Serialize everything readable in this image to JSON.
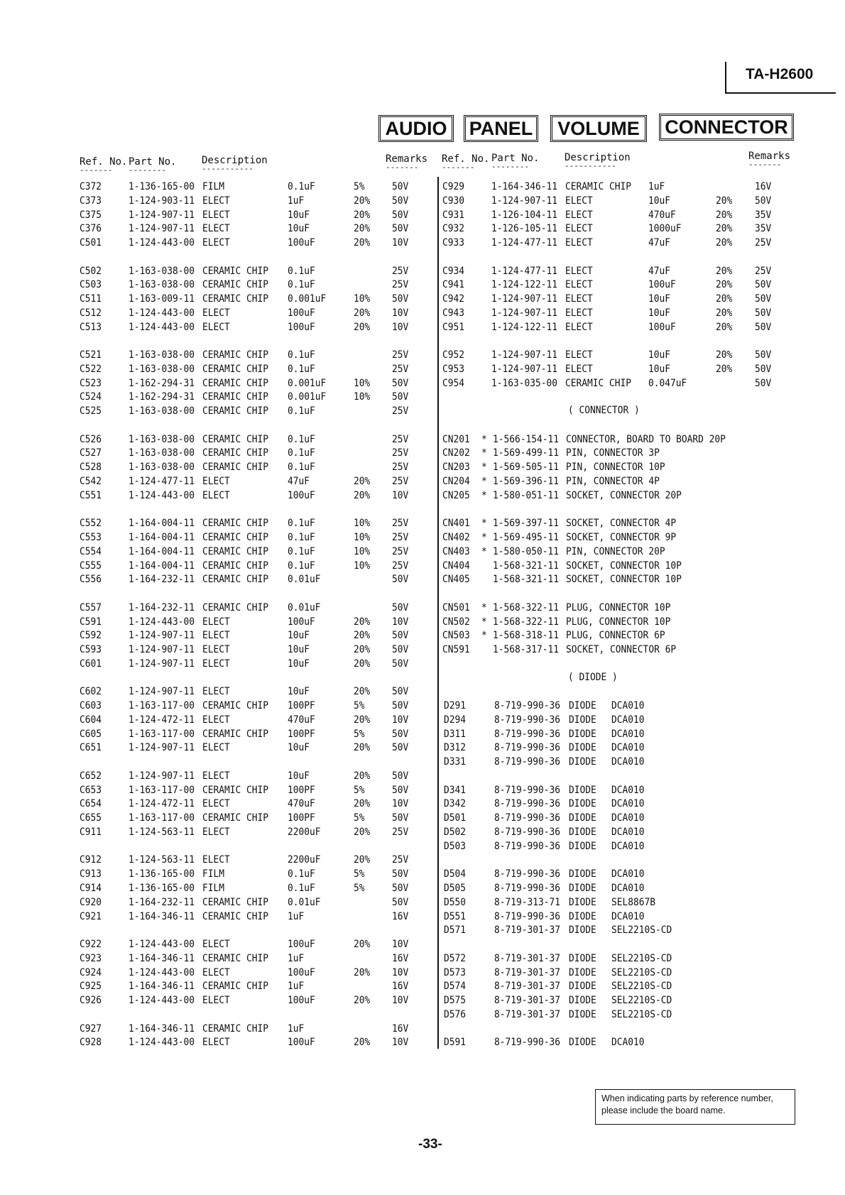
{
  "model": "TA-H2600",
  "title_boxes": [
    "AUDIO",
    "PANEL",
    "VOLUME",
    "CONNECTOR"
  ],
  "headers": {
    "ref": "Ref. No.",
    "part": "Part No.",
    "desc": "Description",
    "remarks": "Remarks"
  },
  "left_column": [
    {
      "rows": [
        [
          "C372",
          "",
          "1-136-165-00",
          "FILM",
          "0.1uF",
          "5%",
          "50V"
        ],
        [
          "C373",
          "",
          "1-124-903-11",
          "ELECT",
          "1uF",
          "20%",
          "50V"
        ],
        [
          "C375",
          "",
          "1-124-907-11",
          "ELECT",
          "10uF",
          "20%",
          "50V"
        ],
        [
          "C376",
          "",
          "1-124-907-11",
          "ELECT",
          "10uF",
          "20%",
          "50V"
        ],
        [
          "C501",
          "",
          "1-124-443-00",
          "ELECT",
          "100uF",
          "20%",
          "10V"
        ]
      ]
    },
    {
      "rows": [
        [
          "C502",
          "",
          "1-163-038-00",
          "CERAMIC CHIP",
          "0.1uF",
          "",
          "25V"
        ],
        [
          "C503",
          "",
          "1-163-038-00",
          "CERAMIC CHIP",
          "0.1uF",
          "",
          "25V"
        ],
        [
          "C511",
          "",
          "1-163-009-11",
          "CERAMIC CHIP",
          "0.001uF",
          "10%",
          "50V"
        ],
        [
          "C512",
          "",
          "1-124-443-00",
          "ELECT",
          "100uF",
          "20%",
          "10V"
        ],
        [
          "C513",
          "",
          "1-124-443-00",
          "ELECT",
          "100uF",
          "20%",
          "10V"
        ]
      ]
    },
    {
      "rows": [
        [
          "C521",
          "",
          "1-163-038-00",
          "CERAMIC CHIP",
          "0.1uF",
          "",
          "25V"
        ],
        [
          "C522",
          "",
          "1-163-038-00",
          "CERAMIC CHIP",
          "0.1uF",
          "",
          "25V"
        ],
        [
          "C523",
          "",
          "1-162-294-31",
          "CERAMIC CHIP",
          "0.001uF",
          "10%",
          "50V"
        ],
        [
          "C524",
          "",
          "1-162-294-31",
          "CERAMIC CHIP",
          "0.001uF",
          "10%",
          "50V"
        ],
        [
          "C525",
          "",
          "1-163-038-00",
          "CERAMIC CHIP",
          "0.1uF",
          "",
          "25V"
        ]
      ]
    },
    {
      "rows": [
        [
          "C526",
          "",
          "1-163-038-00",
          "CERAMIC CHIP",
          "0.1uF",
          "",
          "25V"
        ],
        [
          "C527",
          "",
          "1-163-038-00",
          "CERAMIC CHIP",
          "0.1uF",
          "",
          "25V"
        ],
        [
          "C528",
          "",
          "1-163-038-00",
          "CERAMIC CHIP",
          "0.1uF",
          "",
          "25V"
        ],
        [
          "C542",
          "",
          "1-124-477-11",
          "ELECT",
          "47uF",
          "20%",
          "25V"
        ],
        [
          "C551",
          "",
          "1-124-443-00",
          "ELECT",
          "100uF",
          "20%",
          "10V"
        ]
      ]
    },
    {
      "rows": [
        [
          "C552",
          "",
          "1-164-004-11",
          "CERAMIC CHIP",
          "0.1uF",
          "10%",
          "25V"
        ],
        [
          "C553",
          "",
          "1-164-004-11",
          "CERAMIC CHIP",
          "0.1uF",
          "10%",
          "25V"
        ],
        [
          "C554",
          "",
          "1-164-004-11",
          "CERAMIC CHIP",
          "0.1uF",
          "10%",
          "25V"
        ],
        [
          "C555",
          "",
          "1-164-004-11",
          "CERAMIC CHIP",
          "0.1uF",
          "10%",
          "25V"
        ],
        [
          "C556",
          "",
          "1-164-232-11",
          "CERAMIC CHIP",
          "0.01uF",
          "",
          "50V"
        ]
      ]
    },
    {
      "rows": [
        [
          "C557",
          "",
          "1-164-232-11",
          "CERAMIC CHIP",
          "0.01uF",
          "",
          "50V"
        ],
        [
          "C591",
          "",
          "1-124-443-00",
          "ELECT",
          "100uF",
          "20%",
          "10V"
        ],
        [
          "C592",
          "",
          "1-124-907-11",
          "ELECT",
          "10uF",
          "20%",
          "50V"
        ],
        [
          "C593",
          "",
          "1-124-907-11",
          "ELECT",
          "10uF",
          "20%",
          "50V"
        ],
        [
          "C601",
          "",
          "1-124-907-11",
          "ELECT",
          "10uF",
          "20%",
          "50V"
        ]
      ]
    },
    {
      "rows": [
        [
          "C602",
          "",
          "1-124-907-11",
          "ELECT",
          "10uF",
          "20%",
          "50V"
        ],
        [
          "C603",
          "",
          "1-163-117-00",
          "CERAMIC CHIP",
          "100PF",
          "5%",
          "50V"
        ],
        [
          "C604",
          "",
          "1-124-472-11",
          "ELECT",
          "470uF",
          "20%",
          "10V"
        ],
        [
          "C605",
          "",
          "1-163-117-00",
          "CERAMIC CHIP",
          "100PF",
          "5%",
          "50V"
        ],
        [
          "C651",
          "",
          "1-124-907-11",
          "ELECT",
          "10uF",
          "20%",
          "50V"
        ]
      ]
    },
    {
      "rows": [
        [
          "C652",
          "",
          "1-124-907-11",
          "ELECT",
          "10uF",
          "20%",
          "50V"
        ],
        [
          "C653",
          "",
          "1-163-117-00",
          "CERAMIC CHIP",
          "100PF",
          "5%",
          "50V"
        ],
        [
          "C654",
          "",
          "1-124-472-11",
          "ELECT",
          "470uF",
          "20%",
          "10V"
        ],
        [
          "C655",
          "",
          "1-163-117-00",
          "CERAMIC CHIP",
          "100PF",
          "5%",
          "50V"
        ],
        [
          "C911",
          "",
          "1-124-563-11",
          "ELECT",
          "2200uF",
          "20%",
          "25V"
        ]
      ]
    },
    {
      "rows": [
        [
          "C912",
          "",
          "1-124-563-11",
          "ELECT",
          "2200uF",
          "20%",
          "25V"
        ],
        [
          "C913",
          "",
          "1-136-165-00",
          "FILM",
          "0.1uF",
          "5%",
          "50V"
        ],
        [
          "C914",
          "",
          "1-136-165-00",
          "FILM",
          "0.1uF",
          "5%",
          "50V"
        ],
        [
          "C920",
          "",
          "1-164-232-11",
          "CERAMIC CHIP",
          "0.01uF",
          "",
          "50V"
        ],
        [
          "C921",
          "",
          "1-164-346-11",
          "CERAMIC CHIP",
          "1uF",
          "",
          "16V"
        ]
      ]
    },
    {
      "rows": [
        [
          "C922",
          "",
          "1-124-443-00",
          "ELECT",
          "100uF",
          "20%",
          "10V"
        ],
        [
          "C923",
          "",
          "1-164-346-11",
          "CERAMIC CHIP",
          "1uF",
          "",
          "16V"
        ],
        [
          "C924",
          "",
          "1-124-443-00",
          "ELECT",
          "100uF",
          "20%",
          "10V"
        ],
        [
          "C925",
          "",
          "1-164-346-11",
          "CERAMIC CHIP",
          "1uF",
          "",
          "16V"
        ],
        [
          "C926",
          "",
          "1-124-443-00",
          "ELECT",
          "100uF",
          "20%",
          "10V"
        ]
      ]
    },
    {
      "rows": [
        [
          "C927",
          "",
          "1-164-346-11",
          "CERAMIC CHIP",
          "1uF",
          "",
          "16V"
        ],
        [
          "C928",
          "",
          "1-124-443-00",
          "ELECT",
          "100uF",
          "20%",
          "10V"
        ]
      ]
    }
  ],
  "right_column": [
    {
      "kind": "cap",
      "rows": [
        [
          "C929",
          "",
          "1-164-346-11",
          "CERAMIC CHIP",
          "1uF",
          "",
          "16V"
        ],
        [
          "C930",
          "",
          "1-124-907-11",
          "ELECT",
          "10uF",
          "20%",
          "50V"
        ],
        [
          "C931",
          "",
          "1-126-104-11",
          "ELECT",
          "470uF",
          "20%",
          "35V"
        ],
        [
          "C932",
          "",
          "1-126-105-11",
          "ELECT",
          "1000uF",
          "20%",
          "35V"
        ],
        [
          "C933",
          "",
          "1-124-477-11",
          "ELECT",
          "47uF",
          "20%",
          "25V"
        ]
      ]
    },
    {
      "kind": "cap",
      "rows": [
        [
          "C934",
          "",
          "1-124-477-11",
          "ELECT",
          "47uF",
          "20%",
          "25V"
        ],
        [
          "C941",
          "",
          "1-124-122-11",
          "ELECT",
          "100uF",
          "20%",
          "50V"
        ],
        [
          "C942",
          "",
          "1-124-907-11",
          "ELECT",
          "10uF",
          "20%",
          "50V"
        ],
        [
          "C943",
          "",
          "1-124-907-11",
          "ELECT",
          "10uF",
          "20%",
          "50V"
        ],
        [
          "C951",
          "",
          "1-124-122-11",
          "ELECT",
          "100uF",
          "20%",
          "50V"
        ]
      ]
    },
    {
      "kind": "cap",
      "rows": [
        [
          "C952",
          "",
          "1-124-907-11",
          "ELECT",
          "10uF",
          "20%",
          "50V"
        ],
        [
          "C953",
          "",
          "1-124-907-11",
          "ELECT",
          "10uF",
          "20%",
          "50V"
        ],
        [
          "C954",
          "",
          "1-163-035-00",
          "CERAMIC CHIP",
          "0.047uF",
          "",
          "50V"
        ]
      ]
    },
    {
      "kind": "heading",
      "text": "( CONNECTOR )"
    },
    {
      "kind": "conn",
      "rows": [
        [
          "CN201",
          "*",
          "1-566-154-11",
          "CONNECTOR, BOARD TO BOARD 20P",
          "",
          "",
          ""
        ],
        [
          "CN202",
          "*",
          "1-569-499-11",
          "PIN, CONNECTOR 3P",
          "",
          "",
          ""
        ],
        [
          "CN203",
          "*",
          "1-569-505-11",
          "PIN, CONNECTOR 10P",
          "",
          "",
          ""
        ],
        [
          "CN204",
          "*",
          "1-569-396-11",
          "PIN, CONNECTOR 4P",
          "",
          "",
          ""
        ],
        [
          "CN205",
          "*",
          "1-580-051-11",
          "SOCKET, CONNECTOR 20P",
          "",
          "",
          ""
        ]
      ]
    },
    {
      "kind": "conn",
      "rows": [
        [
          "CN401",
          "*",
          "1-569-397-11",
          "SOCKET, CONNECTOR 4P",
          "",
          "",
          ""
        ],
        [
          "CN402",
          "*",
          "1-569-495-11",
          "SOCKET, CONNECTOR 9P",
          "",
          "",
          ""
        ],
        [
          "CN403",
          "*",
          "1-580-050-11",
          "PIN, CONNECTOR 20P",
          "",
          "",
          ""
        ],
        [
          "CN404",
          "",
          "1-568-321-11",
          "SOCKET, CONNECTOR 10P",
          "",
          "",
          ""
        ],
        [
          "CN405",
          "",
          "1-568-321-11",
          "SOCKET, CONNECTOR 10P",
          "",
          "",
          ""
        ]
      ]
    },
    {
      "kind": "conn",
      "rows": [
        [
          "CN501",
          "*",
          "1-568-322-11",
          "PLUG, CONNECTOR 10P",
          "",
          "",
          ""
        ],
        [
          "CN502",
          "*",
          "1-568-322-11",
          "PLUG, CONNECTOR 10P",
          "",
          "",
          ""
        ],
        [
          "CN503",
          "*",
          "1-568-318-11",
          "PLUG, CONNECTOR 6P",
          "",
          "",
          ""
        ],
        [
          "CN591",
          "",
          "1-568-317-11",
          "SOCKET, CONNECTOR 6P",
          "",
          "",
          ""
        ]
      ]
    },
    {
      "kind": "heading",
      "text": "( DIODE )"
    },
    {
      "kind": "diode",
      "rows": [
        [
          "D291",
          "",
          "8-719-990-36",
          "DIODE",
          "DCA010",
          "",
          ""
        ],
        [
          "D294",
          "",
          "8-719-990-36",
          "DIODE",
          "DCA010",
          "",
          ""
        ],
        [
          "D311",
          "",
          "8-719-990-36",
          "DIODE",
          "DCA010",
          "",
          ""
        ],
        [
          "D312",
          "",
          "8-719-990-36",
          "DIODE",
          "DCA010",
          "",
          ""
        ],
        [
          "D331",
          "",
          "8-719-990-36",
          "DIODE",
          "DCA010",
          "",
          ""
        ]
      ]
    },
    {
      "kind": "diode",
      "rows": [
        [
          "D341",
          "",
          "8-719-990-36",
          "DIODE",
          "DCA010",
          "",
          ""
        ],
        [
          "D342",
          "",
          "8-719-990-36",
          "DIODE",
          "DCA010",
          "",
          ""
        ],
        [
          "D501",
          "",
          "8-719-990-36",
          "DIODE",
          "DCA010",
          "",
          ""
        ],
        [
          "D502",
          "",
          "8-719-990-36",
          "DIODE",
          "DCA010",
          "",
          ""
        ],
        [
          "D503",
          "",
          "8-719-990-36",
          "DIODE",
          "DCA010",
          "",
          ""
        ]
      ]
    },
    {
      "kind": "diode",
      "rows": [
        [
          "D504",
          "",
          "8-719-990-36",
          "DIODE",
          "DCA010",
          "",
          ""
        ],
        [
          "D505",
          "",
          "8-719-990-36",
          "DIODE",
          "DCA010",
          "",
          ""
        ],
        [
          "D550",
          "",
          "8-719-313-71",
          "DIODE",
          "SEL8867B",
          "",
          ""
        ],
        [
          "D551",
          "",
          "8-719-990-36",
          "DIODE",
          "DCA010",
          "",
          ""
        ],
        [
          "D571",
          "",
          "8-719-301-37",
          "DIODE",
          "SEL2210S-CD",
          "",
          ""
        ]
      ]
    },
    {
      "kind": "diode",
      "rows": [
        [
          "D572",
          "",
          "8-719-301-37",
          "DIODE",
          "SEL2210S-CD",
          "",
          ""
        ],
        [
          "D573",
          "",
          "8-719-301-37",
          "DIODE",
          "SEL2210S-CD",
          "",
          ""
        ],
        [
          "D574",
          "",
          "8-719-301-37",
          "DIODE",
          "SEL2210S-CD",
          "",
          ""
        ],
        [
          "D575",
          "",
          "8-719-301-37",
          "DIODE",
          "SEL2210S-CD",
          "",
          ""
        ],
        [
          "D576",
          "",
          "8-719-301-37",
          "DIODE",
          "SEL2210S-CD",
          "",
          ""
        ]
      ]
    },
    {
      "kind": "diode",
      "rows": [
        [
          "D591",
          "",
          "8-719-990-36",
          "DIODE",
          "DCA010",
          "",
          ""
        ]
      ]
    }
  ],
  "note": "When indicating parts by reference number, please include the board name.",
  "page_number": "-33-"
}
